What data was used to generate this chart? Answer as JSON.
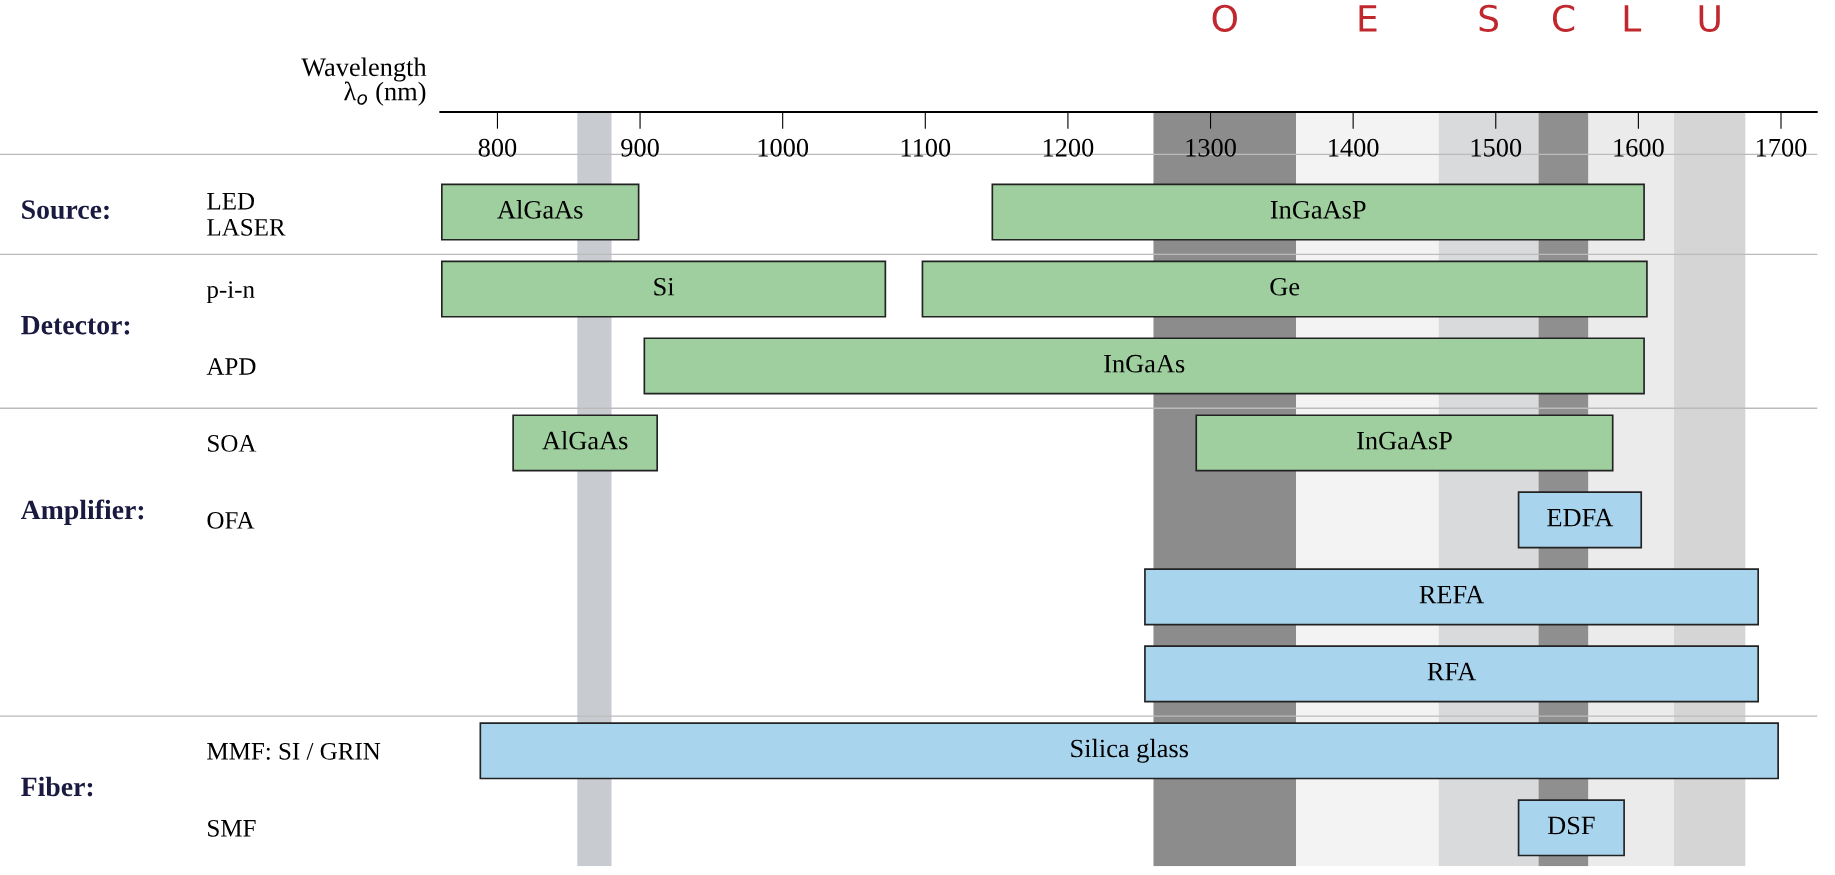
{
  "chart_data": {
    "type": "bar",
    "orientation": "horizontal",
    "xlabel": "Wavelength\nλ$_{o}$ (nm)",
    "categories": [
      "LED\nLASER",
      "p-i-n",
      "APD",
      "SOA",
      "OFA",
      null,
      null,
      "MMF: SI / GRIN",
      "SMF"
    ],
    "xlim": [
      760,
      1725
    ],
    "xticks": [
      800,
      900,
      1000,
      1100,
      1200,
      1300,
      1400,
      1500,
      1600,
      1700
    ],
    "series": [
      {
        "name": "AlGaAs",
        "color": "#9fcf9f",
        "values": [
          138,
          null,
          null,
          null,
          null,
          null,
          null,
          null,
          null
        ],
        "base": [
          761,
          null,
          null,
          null,
          null,
          null,
          null,
          null,
          null
        ]
      },
      {
        "name": "InGaAsP",
        "color": "#9fcf9f",
        "values": [
          457,
          null,
          null,
          null,
          null,
          null,
          null,
          null,
          null
        ],
        "base": [
          1147,
          null,
          null,
          null,
          null,
          null,
          null,
          null,
          null
        ]
      },
      {
        "name": "Si",
        "color": "#9fcf9f",
        "values": [
          null,
          311,
          null,
          null,
          null,
          null,
          null,
          null,
          null
        ],
        "base": [
          null,
          761,
          null,
          null,
          null,
          null,
          null,
          null,
          null
        ]
      },
      {
        "name": "Ge",
        "color": "#9fcf9f",
        "values": [
          null,
          508,
          null,
          null,
          null,
          null,
          null,
          null,
          null
        ],
        "base": [
          null,
          1098,
          null,
          null,
          null,
          null,
          null,
          null,
          null
        ]
      },
      {
        "name": "InGaAs",
        "color": "#9fcf9f",
        "values": [
          null,
          null,
          701,
          null,
          null,
          null,
          null,
          null,
          null
        ],
        "base": [
          null,
          null,
          903,
          null,
          null,
          null,
          null,
          null,
          null
        ]
      },
      {
        "name": "AlGaAs",
        "color": "#9fcf9f",
        "values": [
          null,
          null,
          null,
          101,
          null,
          null,
          null,
          null,
          null
        ],
        "base": [
          null,
          null,
          null,
          811,
          null,
          null,
          null,
          null,
          null
        ]
      },
      {
        "name": "InGaAsP",
        "color": "#9fcf9f",
        "values": [
          null,
          null,
          null,
          292,
          null,
          null,
          null,
          null,
          null
        ],
        "base": [
          null,
          null,
          null,
          1290,
          null,
          null,
          null,
          null,
          null
        ]
      },
      {
        "name": "EDFA",
        "color": "#a9d4ee",
        "values": [
          null,
          null,
          null,
          null,
          86,
          null,
          null,
          null,
          null
        ],
        "base": [
          null,
          null,
          null,
          null,
          1516,
          null,
          null,
          null,
          null
        ]
      },
      {
        "name": "REFA",
        "color": "#a9d4ee",
        "values": [
          null,
          null,
          null,
          null,
          null,
          430,
          null,
          null,
          null
        ],
        "base": [
          null,
          null,
          null,
          null,
          null,
          1254,
          null,
          null,
          null
        ]
      },
      {
        "name": "RFA",
        "color": "#a9d4ee",
        "values": [
          null,
          null,
          null,
          null,
          null,
          null,
          430,
          null,
          null
        ],
        "base": [
          null,
          null,
          null,
          null,
          null,
          null,
          1254,
          null,
          null
        ]
      },
      {
        "name": "Silica glass",
        "color": "#a9d4ee",
        "values": [
          null,
          null,
          null,
          null,
          null,
          null,
          null,
          910,
          null
        ],
        "base": [
          null,
          null,
          null,
          null,
          null,
          null,
          null,
          788,
          null
        ]
      },
      {
        "name": "DSF",
        "color": "#a9d4ee",
        "values": [
          null,
          null,
          null,
          null,
          null,
          null,
          null,
          null,
          74
        ],
        "base": [
          null,
          null,
          null,
          null,
          null,
          null,
          null,
          null,
          1516
        ]
      }
    ],
    "bands": [
      {
        "axis": "x",
        "from": 856,
        "to": 880,
        "color": "#c8ccd0"
      },
      {
        "axis": "x",
        "from": 1260,
        "to": 1360,
        "label": "O",
        "color": "#8c8c8c"
      },
      {
        "axis": "x",
        "from": 1360,
        "to": 1460,
        "label": "E",
        "color": "#f3f3f3"
      },
      {
        "axis": "x",
        "from": 1460,
        "to": 1530,
        "label": "S",
        "color": "#d8dadc"
      },
      {
        "axis": "x",
        "from": 1530,
        "to": 1565,
        "label": "C",
        "color": "#8f8f8f"
      },
      {
        "axis": "x",
        "from": 1565,
        "to": 1625,
        "label": "L",
        "color": "#ebebeb"
      },
      {
        "axis": "x",
        "from": 1625,
        "to": 1675,
        "label": "U",
        "color": "#d5d5d5"
      }
    ],
    "annotations": [
      "Source:",
      "Detector:",
      "Amplifier:",
      "Fiber:"
    ],
    "legend": false,
    "grid": false
  }
}
